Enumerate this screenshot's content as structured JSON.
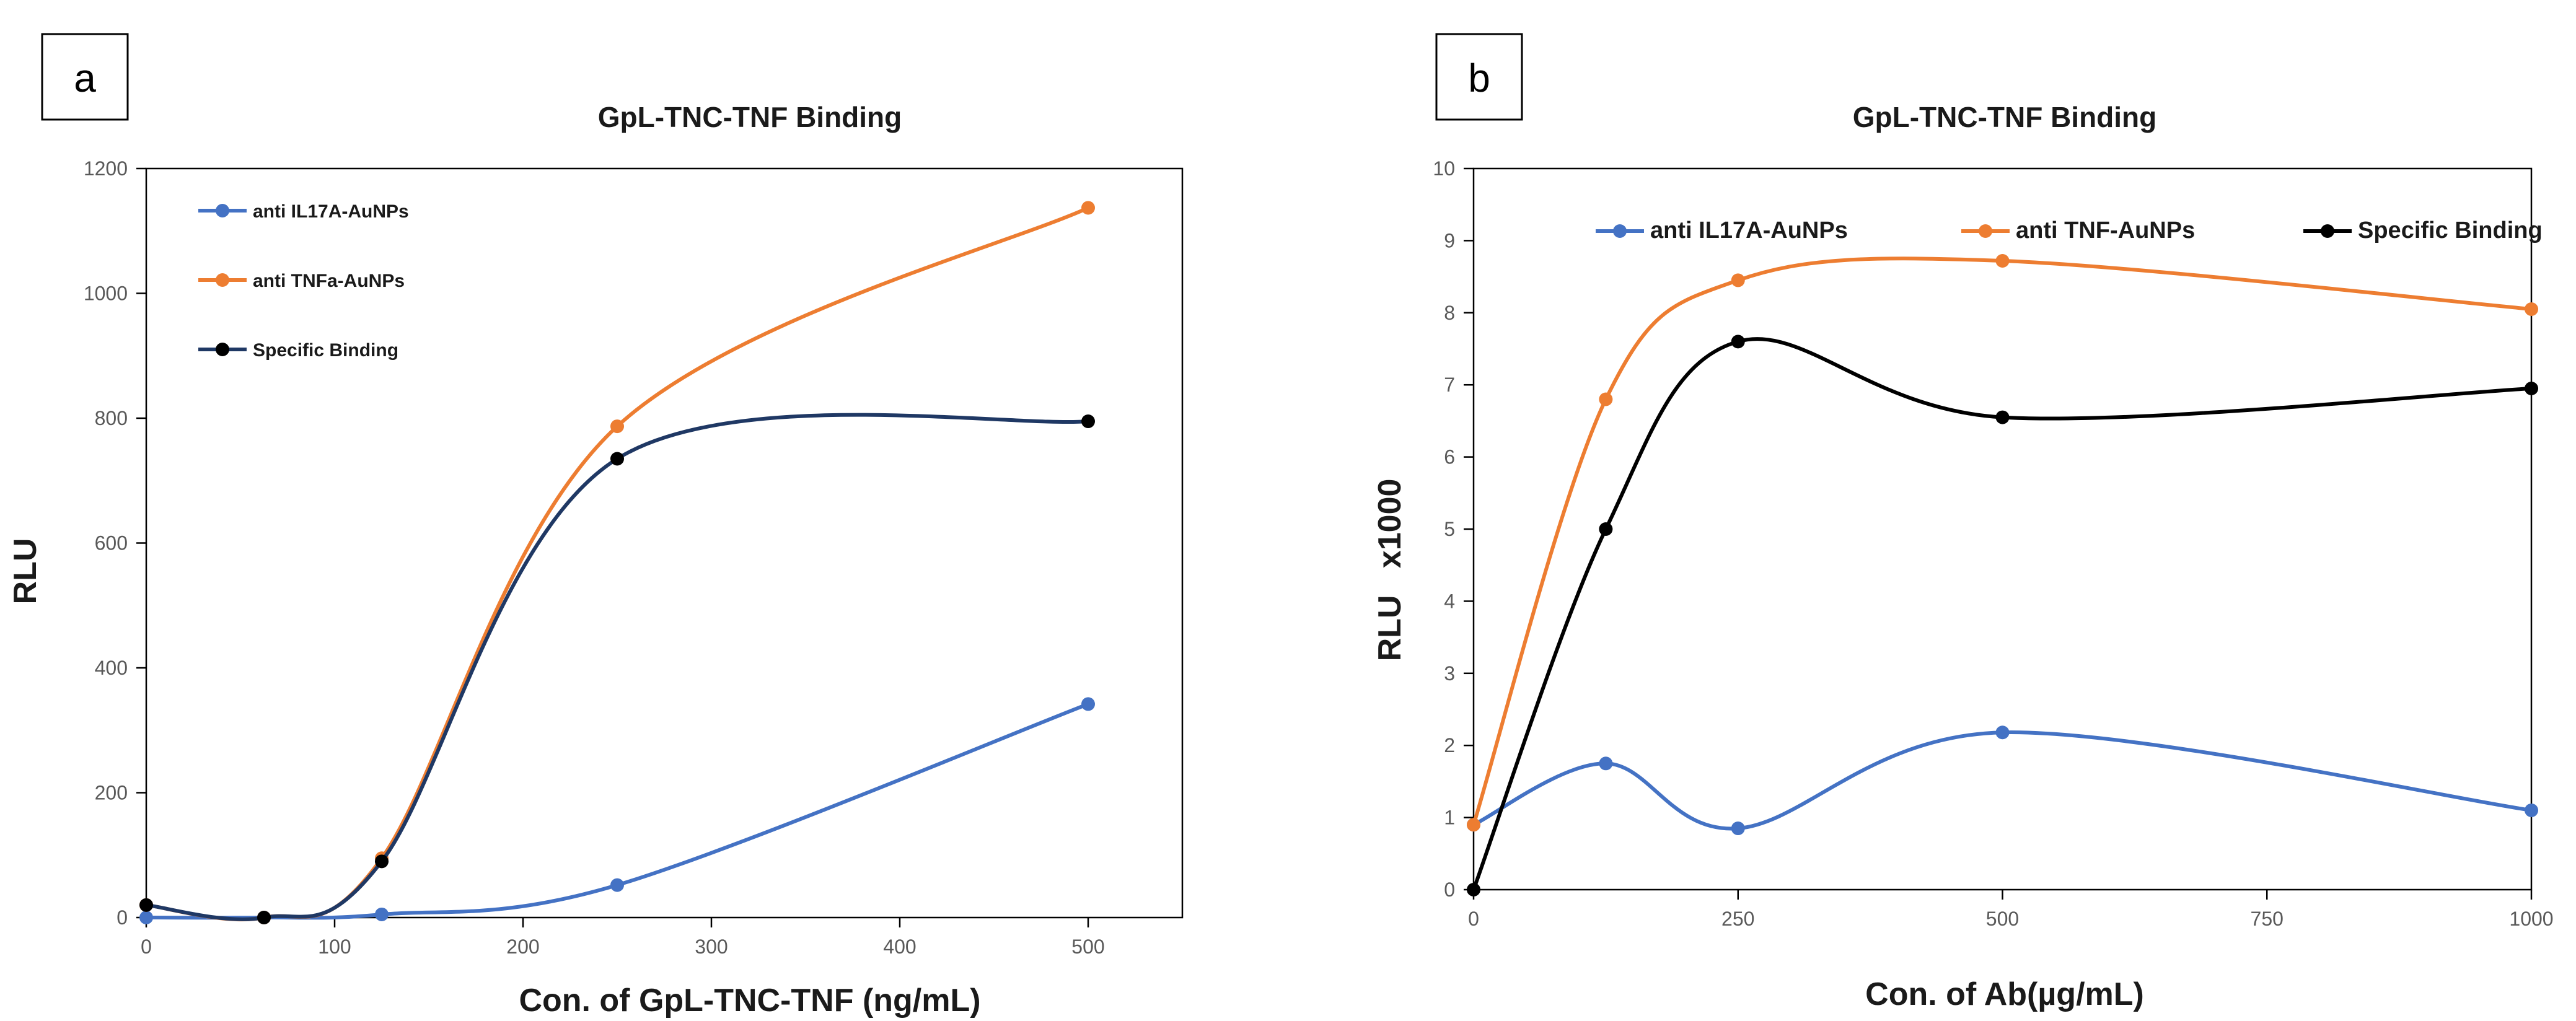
{
  "colors": {
    "blue": "#4472C4",
    "orange": "#ED7D31",
    "black": "#000000",
    "navy": "#1F3864"
  },
  "chart_data": [
    {
      "panel": "a",
      "type": "line",
      "title": "GpL-TNC-TNF Binding",
      "xlabel": "Con. of GpL-TNC-TNF (ng/mL)",
      "ylabel": "RLU",
      "xlim": [
        0,
        550
      ],
      "ylim": [
        0,
        1200
      ],
      "xticks": [
        0,
        100,
        200,
        300,
        400,
        500
      ],
      "yticks": [
        0,
        200,
        400,
        600,
        800,
        1000,
        1200
      ],
      "legend_position": "top-left",
      "grid": false,
      "series": [
        {
          "name": "anti IL17A-AuNPs",
          "color": "#4472C4",
          "x": [
            0,
            62.5,
            125,
            250,
            500
          ],
          "y": [
            0,
            0,
            5,
            52,
            342
          ]
        },
        {
          "name": "anti TNFa-AuNPs",
          "color": "#ED7D31",
          "x": [
            0,
            62.5,
            125,
            250,
            500
          ],
          "y": [
            20,
            0,
            95,
            787,
            1137
          ]
        },
        {
          "name": "Specific Binding",
          "color": "#000000",
          "line_color": "#1F3864",
          "x": [
            0,
            62.5,
            125,
            250,
            500
          ],
          "y": [
            20,
            0,
            90,
            735,
            795
          ]
        }
      ]
    },
    {
      "panel": "b",
      "type": "line",
      "title": "GpL-TNC-TNF Binding",
      "xlabel": "Con. of Ab(µg/mL)",
      "ylabel": "RLU   x1000",
      "xlim": [
        0,
        1000
      ],
      "ylim": [
        0,
        10
      ],
      "xticks": [
        0,
        250,
        500,
        750,
        1000
      ],
      "yticks": [
        0,
        1,
        2,
        3,
        4,
        5,
        6,
        7,
        8,
        9,
        10
      ],
      "legend_position": "top",
      "grid": false,
      "series": [
        {
          "name": "anti IL17A-AuNPs",
          "color": "#4472C4",
          "x": [
            0,
            125,
            250,
            500,
            1000
          ],
          "y": [
            0.9,
            1.75,
            0.85,
            2.18,
            1.1
          ]
        },
        {
          "name": "anti TNF-AuNPs",
          "color": "#ED7D31",
          "x": [
            0,
            125,
            250,
            500,
            1000
          ],
          "y": [
            0.9,
            6.8,
            8.45,
            8.72,
            8.05
          ]
        },
        {
          "name": "Specific Binding",
          "color": "#000000",
          "line_color": "#000000",
          "x": [
            0,
            125,
            250,
            500,
            1000
          ],
          "y": [
            0,
            5.0,
            7.6,
            6.55,
            6.95
          ]
        }
      ]
    }
  ]
}
